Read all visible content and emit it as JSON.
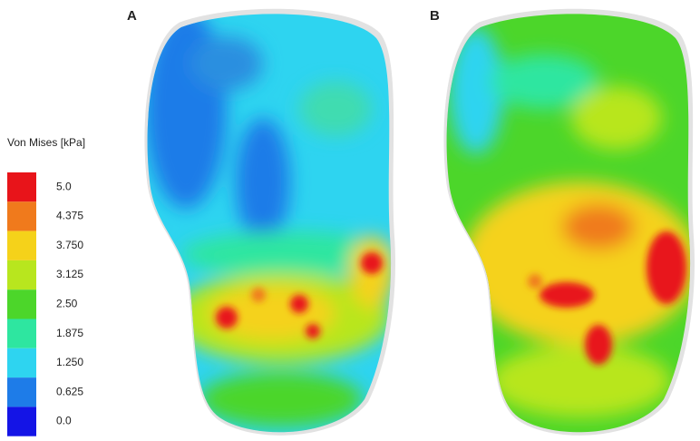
{
  "legend": {
    "title": "Von Mises [kPa]",
    "entries": [
      {
        "label": "5.0",
        "color": "#e8141a"
      },
      {
        "label": "4.375",
        "color": "#f07a1c"
      },
      {
        "label": "3.750",
        "color": "#f5d21a"
      },
      {
        "label": "3.125",
        "color": "#b8e61e"
      },
      {
        "label": "2.50",
        "color": "#4cd62a"
      },
      {
        "label": "1.875",
        "color": "#2ee6a0"
      },
      {
        "label": "1.250",
        "color": "#2ed4f0"
      },
      {
        "label": "0.625",
        "color": "#1e7ce8"
      },
      {
        "label": "0.0",
        "color": "#1414e6"
      }
    ]
  },
  "panels": [
    {
      "label": "A"
    },
    {
      "label": "B"
    }
  ]
}
